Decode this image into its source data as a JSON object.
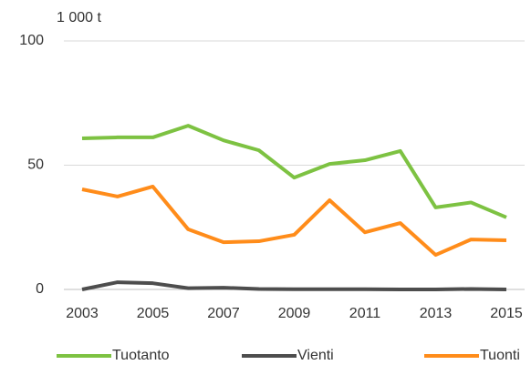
{
  "chart_data": {
    "type": "line",
    "y_axis_label": "1 000 t",
    "x": [
      2003,
      2004,
      2005,
      2006,
      2007,
      2008,
      2009,
      2010,
      2011,
      2012,
      2013,
      2014,
      2015
    ],
    "xlim": [
      2003,
      2015
    ],
    "xticks": [
      2003,
      2005,
      2007,
      2009,
      2011,
      2013,
      2015
    ],
    "ylim": [
      0,
      100
    ],
    "yticks": [
      0,
      50,
      100
    ],
    "grid": true,
    "legend": "bottom",
    "series": [
      {
        "name": "Tuotanto",
        "color": "#7dc242",
        "values": [
          60.8,
          61.2,
          61.2,
          65.9,
          60,
          56,
          45,
          50.5,
          52,
          55.7,
          33,
          35,
          29
        ]
      },
      {
        "name": "Vienti",
        "color": "#4d4d4d",
        "values": [
          0,
          2.9,
          2.5,
          0.5,
          0.7,
          0.2,
          0.1,
          0.1,
          0.1,
          0,
          0,
          0.2,
          0
        ]
      },
      {
        "name": "Tuonti",
        "color": "#ff8c1a",
        "values": [
          40.3,
          37.4,
          41.4,
          24.2,
          19,
          19.4,
          22,
          35.9,
          23,
          26.7,
          13.9,
          20.1,
          19.8
        ]
      }
    ]
  }
}
